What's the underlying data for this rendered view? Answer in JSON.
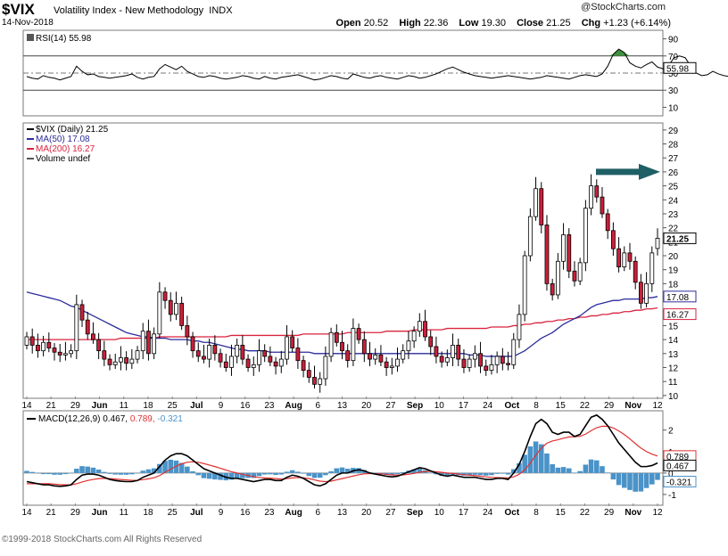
{
  "header": {
    "symbol": "$VIX",
    "name": "Volatility Index - New Methodology",
    "exchange": "INDX",
    "date": "14-Nov-2018",
    "open_label": "Open",
    "open": "20.52",
    "high_label": "High",
    "high": "22.36",
    "low_label": "Low",
    "low": "19.30",
    "close_label": "Close",
    "close": "21.25",
    "chg_label": "Chg",
    "chg": "+1.23 (+6.14%)",
    "brand": "@StockCharts.com"
  },
  "footer": {
    "copyright": "©1999-2018 StockCharts.com All Rights Reserved"
  },
  "colors": {
    "up": "#ffffff",
    "down": "#cc1f3a",
    "ma50": "#2b2d9b",
    "ma200": "#d9233e",
    "macd": "#000000",
    "signal": "#e03030",
    "hist": "#4a93c8",
    "rsi": "#000000",
    "rsi_fill": "#3f8f3f",
    "arrow": "#1f5f66"
  },
  "chart_data": [
    {
      "type": "line",
      "panel": "RSI",
      "legend": "RSI(14) 55.98",
      "last_value": "55.98",
      "y_ticks": [
        "90",
        "70",
        "50",
        "30",
        "10"
      ],
      "ylim": [
        0,
        100
      ],
      "levels": [
        70,
        30
      ],
      "x": [
        0,
        1,
        2,
        3,
        4,
        5,
        6,
        7,
        8,
        9,
        10,
        11,
        12,
        13,
        14,
        15,
        16,
        17,
        18,
        19,
        20,
        21,
        22,
        23,
        24,
        25,
        26,
        27,
        28,
        29,
        30,
        31,
        32,
        33,
        34,
        35,
        36,
        37,
        38,
        39,
        40,
        41,
        42,
        43,
        44,
        45,
        46,
        47,
        48,
        49,
        50,
        51,
        52,
        53,
        54,
        55,
        56,
        57,
        58,
        59,
        60,
        61,
        62,
        63,
        64,
        65,
        66,
        67,
        68,
        69,
        70,
        71,
        72,
        73,
        74,
        75,
        76,
        77,
        78,
        79,
        80,
        81,
        82,
        83,
        84,
        85,
        86,
        87,
        88,
        89,
        90,
        91,
        92,
        93,
        94,
        95,
        96,
        97,
        98,
        99,
        100,
        101,
        102,
        103,
        104,
        105,
        106,
        107,
        108,
        109,
        110,
        111,
        112,
        113,
        114,
        115,
        116,
        117,
        118,
        119,
        120,
        121,
        122,
        123,
        124,
        125,
        126,
        127,
        128,
        129
      ],
      "values": [
        46,
        44,
        43,
        47,
        45,
        44,
        42,
        44,
        46,
        58,
        52,
        48,
        49,
        46,
        45,
        44,
        45,
        46,
        47,
        49,
        45,
        43,
        45,
        46,
        55,
        60,
        57,
        54,
        58,
        52,
        49,
        46,
        45,
        47,
        46,
        44,
        43,
        44,
        45,
        47,
        46,
        44,
        43,
        46,
        44,
        43,
        45,
        46,
        47,
        48,
        46,
        44,
        42,
        43,
        45,
        47,
        46,
        44,
        43,
        49,
        47,
        45,
        44,
        46,
        47,
        45,
        44,
        43,
        45,
        47,
        46,
        44,
        45,
        47,
        49,
        52,
        55,
        57,
        54,
        51,
        49,
        47,
        46,
        45,
        44,
        45,
        46,
        47,
        46,
        45,
        44,
        43,
        44,
        45,
        47,
        46,
        45,
        44,
        43,
        45,
        47,
        48,
        47,
        46,
        49,
        58,
        72,
        78,
        74,
        62,
        58,
        56,
        60,
        63,
        57,
        55,
        59,
        68,
        70,
        68,
        58,
        50,
        47,
        48,
        52,
        49,
        47,
        46,
        48,
        55.98
      ]
    },
    {
      "type": "candlestick",
      "panel": "Price",
      "legend": [
        "$VIX (Daily) 21.25",
        "MA(50) 17.08",
        "MA(200) 16.27",
        "Volume undef"
      ],
      "last_value": "21.25",
      "ma50_last": "17.08",
      "ma200_last": "16.27",
      "y_ticks": [
        "29",
        "28",
        "27",
        "26",
        "25",
        "24",
        "23",
        "22",
        "21",
        "20",
        "19",
        "18",
        "17",
        "16",
        "15",
        "14",
        "13",
        "12",
        "11",
        "10"
      ],
      "ylim": [
        9.8,
        29.5
      ],
      "close": [
        14.2,
        13.6,
        13.2,
        13.8,
        13.4,
        13.1,
        12.9,
        13.0,
        13.2,
        16.5,
        15.4,
        14.4,
        14.0,
        13.2,
        12.6,
        12.2,
        12.4,
        12.7,
        12.3,
        12.6,
        13.2,
        14.6,
        13.0,
        14.4,
        17.4,
        16.8,
        15.8,
        16.6,
        15.0,
        14.2,
        13.2,
        12.8,
        12.6,
        13.6,
        13.0,
        12.4,
        12.0,
        12.8,
        13.6,
        12.6,
        12.0,
        12.2,
        13.2,
        12.8,
        12.4,
        12.1,
        12.6,
        14.2,
        13.4,
        12.5,
        11.8,
        11.3,
        10.8,
        11.2,
        12.8,
        14.5,
        13.8,
        13.2,
        12.5,
        14.8,
        14.0,
        13.0,
        12.6,
        12.9,
        12.4,
        12.0,
        12.1,
        12.6,
        13.2,
        13.9,
        14.6,
        15.3,
        14.2,
        13.5,
        12.8,
        12.4,
        12.7,
        13.6,
        12.6,
        12.0,
        12.6,
        13.0,
        12.1,
        11.8,
        12.2,
        12.8,
        12.3,
        12.2,
        14.0,
        15.8,
        20.0,
        22.8,
        24.8,
        22.2,
        18.0,
        17.2,
        19.6,
        21.5,
        18.9,
        18.2,
        19.5,
        23.4,
        25.0,
        24.2,
        23.0,
        21.8,
        20.5,
        19.2,
        20.2,
        19.6,
        18.1,
        16.6,
        18.0,
        20.2,
        21.25
      ],
      "open": [
        13.6,
        14.2,
        13.6,
        13.2,
        13.8,
        13.4,
        13.1,
        12.9,
        13.0,
        13.2,
        16.5,
        15.4,
        14.4,
        14.0,
        13.2,
        12.6,
        12.2,
        12.4,
        12.7,
        12.3,
        12.6,
        13.2,
        14.6,
        13.0,
        14.4,
        17.4,
        16.8,
        15.8,
        16.6,
        15.0,
        14.2,
        13.2,
        12.8,
        12.6,
        13.6,
        13.0,
        12.4,
        12.0,
        12.8,
        13.6,
        12.6,
        12.0,
        12.2,
        13.2,
        12.8,
        12.4,
        12.1,
        12.6,
        14.2,
        13.4,
        12.5,
        11.8,
        11.3,
        10.8,
        11.2,
        12.8,
        14.5,
        13.8,
        13.2,
        12.5,
        14.8,
        14.0,
        13.0,
        12.6,
        12.9,
        12.4,
        12.0,
        12.1,
        12.6,
        13.2,
        13.9,
        14.6,
        15.3,
        14.2,
        13.5,
        12.8,
        12.4,
        12.7,
        13.6,
        12.6,
        12.0,
        12.6,
        13.0,
        12.1,
        11.8,
        12.2,
        12.8,
        12.3,
        12.2,
        14.0,
        15.8,
        20.0,
        22.8,
        24.8,
        22.2,
        18.0,
        17.2,
        19.6,
        21.5,
        18.9,
        18.2,
        19.5,
        23.4,
        25.0,
        24.2,
        23.0,
        21.8,
        20.5,
        19.2,
        20.2,
        19.6,
        18.1,
        16.6,
        18.0,
        20.52
      ],
      "ma50": [
        17.4,
        17.3,
        17.2,
        17.1,
        17.0,
        16.9,
        16.8,
        16.6,
        16.4,
        16.3,
        16.1,
        15.9,
        15.7,
        15.5,
        15.3,
        15.1,
        14.9,
        14.7,
        14.5,
        14.4,
        14.3,
        14.2,
        14.2,
        14.1,
        14.1,
        14.1,
        14.0,
        14.0,
        14.0,
        14.0,
        13.9,
        13.9,
        13.8,
        13.8,
        13.7,
        13.6,
        13.5,
        13.4,
        13.3,
        13.3,
        13.2,
        13.2,
        13.2,
        13.2,
        13.1,
        13.1,
        13.1,
        13.1,
        13.1,
        13.1,
        13.1,
        13.1,
        13.0,
        13.0,
        13.0,
        13.0,
        13.0,
        13.0,
        13.0,
        13.0,
        13.0,
        13.0,
        13.0,
        13.0,
        13.0,
        13.0,
        13.0,
        13.0,
        13.0,
        13.0,
        13.0,
        13.0,
        13.0,
        13.0,
        13.0,
        13.0,
        13.0,
        13.0,
        13.0,
        13.0,
        12.9,
        12.9,
        12.9,
        12.8,
        12.8,
        12.8,
        12.8,
        12.8,
        12.8,
        13.0,
        13.2,
        13.5,
        13.8,
        14.1,
        14.3,
        14.5,
        14.8,
        15.1,
        15.3,
        15.5,
        15.7,
        16.0,
        16.3,
        16.5,
        16.6,
        16.7,
        16.8,
        16.8,
        16.9,
        16.9,
        16.9,
        16.9,
        17.0,
        17.0,
        17.08
      ],
      "ma200": [
        14.0,
        14.0,
        14.0,
        14.0,
        14.0,
        14.0,
        14.0,
        14.0,
        14.0,
        14.0,
        14.0,
        14.0,
        14.0,
        14.0,
        14.0,
        14.0,
        14.0,
        14.1,
        14.1,
        14.1,
        14.1,
        14.1,
        14.1,
        14.1,
        14.2,
        14.2,
        14.2,
        14.2,
        14.2,
        14.2,
        14.2,
        14.2,
        14.2,
        14.2,
        14.2,
        14.2,
        14.2,
        14.3,
        14.3,
        14.3,
        14.3,
        14.3,
        14.3,
        14.3,
        14.3,
        14.3,
        14.3,
        14.3,
        14.3,
        14.3,
        14.4,
        14.4,
        14.4,
        14.4,
        14.4,
        14.4,
        14.4,
        14.4,
        14.5,
        14.5,
        14.5,
        14.5,
        14.5,
        14.5,
        14.5,
        14.6,
        14.6,
        14.6,
        14.6,
        14.6,
        14.7,
        14.7,
        14.7,
        14.7,
        14.7,
        14.7,
        14.8,
        14.8,
        14.8,
        14.8,
        14.8,
        14.8,
        14.8,
        14.8,
        14.9,
        14.9,
        14.9,
        14.9,
        15.0,
        15.0,
        15.1,
        15.1,
        15.2,
        15.2,
        15.3,
        15.3,
        15.4,
        15.4,
        15.5,
        15.5,
        15.6,
        15.6,
        15.7,
        15.7,
        15.8,
        15.8,
        15.9,
        15.9,
        16.0,
        16.0,
        16.1,
        16.1,
        16.2,
        16.2,
        16.27
      ]
    },
    {
      "type": "line",
      "panel": "MACD",
      "legend": "MACD(12,26,9) 0.467, 0.789, -0.321",
      "legend_parts": [
        "MACD(12,26,9) 0.467,",
        "0.789,",
        "-0.321"
      ],
      "last_values": [
        "0.789",
        "0.467",
        "-0.321"
      ],
      "y_ticks": [
        "2",
        "1",
        "0",
        "-1"
      ],
      "ylim": [
        -1.5,
        2.9
      ],
      "macd": [
        -0.4,
        -0.45,
        -0.5,
        -0.55,
        -0.55,
        -0.6,
        -0.62,
        -0.6,
        -0.55,
        -0.3,
        -0.1,
        -0.05,
        -0.05,
        -0.1,
        -0.2,
        -0.3,
        -0.35,
        -0.38,
        -0.4,
        -0.4,
        -0.35,
        -0.2,
        -0.1,
        0.0,
        0.3,
        0.6,
        0.8,
        0.9,
        0.9,
        0.8,
        0.6,
        0.4,
        0.2,
        0.1,
        0.0,
        -0.1,
        -0.2,
        -0.25,
        -0.25,
        -0.3,
        -0.35,
        -0.4,
        -0.35,
        -0.3,
        -0.3,
        -0.35,
        -0.35,
        -0.2,
        -0.1,
        -0.15,
        -0.25,
        -0.4,
        -0.55,
        -0.6,
        -0.5,
        -0.3,
        -0.1,
        0.0,
        0.0,
        0.1,
        0.15,
        0.1,
        0.0,
        -0.05,
        -0.1,
        -0.15,
        -0.18,
        -0.15,
        -0.05,
        0.05,
        0.15,
        0.25,
        0.2,
        0.1,
        0.0,
        -0.1,
        -0.15,
        -0.1,
        -0.15,
        -0.2,
        -0.2,
        -0.2,
        -0.25,
        -0.3,
        -0.3,
        -0.25,
        -0.25,
        -0.3,
        0.0,
        0.4,
        1.0,
        1.7,
        2.3,
        2.5,
        2.3,
        1.9,
        1.8,
        1.9,
        1.9,
        1.7,
        1.8,
        2.2,
        2.6,
        2.7,
        2.5,
        2.2,
        1.8,
        1.4,
        1.1,
        0.8,
        0.5,
        0.3,
        0.3,
        0.35,
        0.467
      ],
      "signal": [
        -0.5,
        -0.5,
        -0.5,
        -0.5,
        -0.5,
        -0.52,
        -0.54,
        -0.55,
        -0.55,
        -0.5,
        -0.42,
        -0.35,
        -0.3,
        -0.26,
        -0.25,
        -0.26,
        -0.28,
        -0.3,
        -0.32,
        -0.34,
        -0.34,
        -0.31,
        -0.27,
        -0.22,
        -0.12,
        0.03,
        0.18,
        0.32,
        0.43,
        0.5,
        0.52,
        0.5,
        0.44,
        0.37,
        0.3,
        0.22,
        0.14,
        0.06,
        0.0,
        -0.06,
        -0.12,
        -0.17,
        -0.21,
        -0.23,
        -0.24,
        -0.26,
        -0.28,
        -0.26,
        -0.23,
        -0.21,
        -0.22,
        -0.26,
        -0.32,
        -0.38,
        -0.4,
        -0.38,
        -0.32,
        -0.26,
        -0.2,
        -0.14,
        -0.08,
        -0.04,
        -0.03,
        -0.03,
        -0.04,
        -0.06,
        -0.09,
        -0.1,
        -0.09,
        -0.06,
        -0.02,
        0.04,
        0.07,
        0.08,
        0.06,
        0.03,
        0.0,
        -0.02,
        -0.05,
        -0.08,
        -0.1,
        -0.12,
        -0.15,
        -0.18,
        -0.2,
        -0.21,
        -0.22,
        -0.23,
        -0.18,
        -0.06,
        0.15,
        0.46,
        0.83,
        1.16,
        1.39,
        1.49,
        1.55,
        1.62,
        1.68,
        1.69,
        1.71,
        1.81,
        1.97,
        2.11,
        2.18,
        2.18,
        2.1,
        1.96,
        1.79,
        1.59,
        1.37,
        1.16,
        1.0,
        0.88,
        0.789
      ],
      "histogram": [
        0.1,
        0.05,
        0.0,
        -0.05,
        -0.05,
        -0.08,
        -0.08,
        -0.05,
        0.0,
        0.2,
        0.32,
        0.3,
        0.25,
        0.16,
        0.05,
        -0.04,
        -0.07,
        -0.08,
        -0.08,
        -0.06,
        -0.01,
        0.11,
        0.17,
        0.22,
        0.42,
        0.57,
        0.62,
        0.58,
        0.47,
        0.3,
        0.08,
        -0.1,
        -0.24,
        -0.27,
        -0.3,
        -0.32,
        -0.34,
        -0.31,
        -0.25,
        -0.24,
        -0.23,
        -0.23,
        -0.14,
        -0.07,
        -0.06,
        -0.09,
        -0.07,
        0.06,
        0.13,
        0.06,
        -0.03,
        -0.14,
        -0.23,
        -0.22,
        -0.1,
        0.08,
        0.22,
        0.26,
        0.2,
        0.24,
        0.23,
        0.14,
        0.03,
        -0.02,
        -0.06,
        -0.09,
        -0.09,
        -0.05,
        0.04,
        0.11,
        0.17,
        0.21,
        0.13,
        0.02,
        -0.06,
        -0.13,
        -0.15,
        -0.08,
        -0.1,
        -0.12,
        -0.1,
        -0.08,
        -0.1,
        -0.12,
        -0.1,
        -0.04,
        -0.03,
        -0.07,
        0.18,
        0.46,
        0.85,
        1.24,
        1.47,
        1.34,
        0.91,
        0.41,
        0.25,
        0.28,
        0.22,
        0.01,
        0.09,
        0.39,
        0.63,
        0.59,
        0.32,
        0.02,
        -0.3,
        -0.56,
        -0.69,
        -0.79,
        -0.87,
        -0.86,
        -0.7,
        -0.53,
        -0.321
      ]
    }
  ],
  "x_axis": {
    "labels": [
      "14",
      "21",
      "29",
      "Jun",
      "11",
      "18",
      "25",
      "Jul",
      "9",
      "16",
      "23",
      "Aug",
      "6",
      "13",
      "20",
      "27",
      "Sep",
      "10",
      "17",
      "24",
      "Oct",
      "8",
      "15",
      "22",
      "29",
      "Nov",
      "12"
    ],
    "bold": [
      "Jun",
      "Jul",
      "Aug",
      "Sep",
      "Oct",
      "Nov"
    ]
  },
  "annotation": {
    "arrow": "right-pointing teal arrow near 26"
  }
}
